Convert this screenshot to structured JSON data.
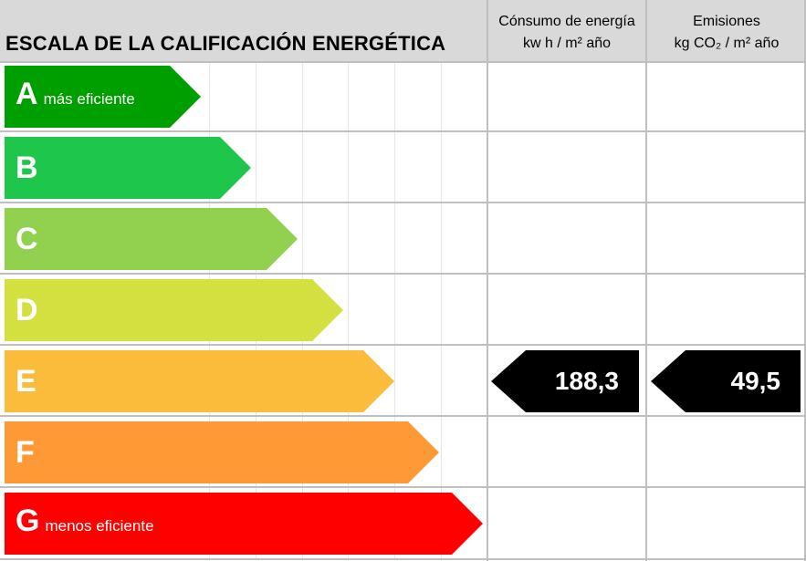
{
  "header": {
    "title": "ESCALA DE LA CALIFICACIÓN ENERGÉTICA",
    "consumo_line1": "Cónsumo de energía",
    "consumo_line2": "kw h / m² año",
    "emisiones_line1": "Emisiones",
    "emisiones_line2": "kg CO₂ / m² año"
  },
  "ratings": [
    {
      "letter": "A",
      "note": "más eficiente",
      "color": "#009f00"
    },
    {
      "letter": "B",
      "note": "",
      "color": "#1fc64c"
    },
    {
      "letter": "C",
      "note": "",
      "color": "#92d050"
    },
    {
      "letter": "D",
      "note": "",
      "color": "#d3e03f"
    },
    {
      "letter": "E",
      "note": "",
      "color": "#fbbc3b"
    },
    {
      "letter": "F",
      "note": "",
      "color": "#fd9a35"
    },
    {
      "letter": "G",
      "note": "menos eficiente",
      "color": "#ff0000"
    }
  ],
  "current_rating": "E",
  "consumo_value": "188,3",
  "emisiones_value": "49,5",
  "pointer_color": "#000000",
  "grid_color": "#bfbfbf",
  "header_bg": "#d9d9d9"
}
